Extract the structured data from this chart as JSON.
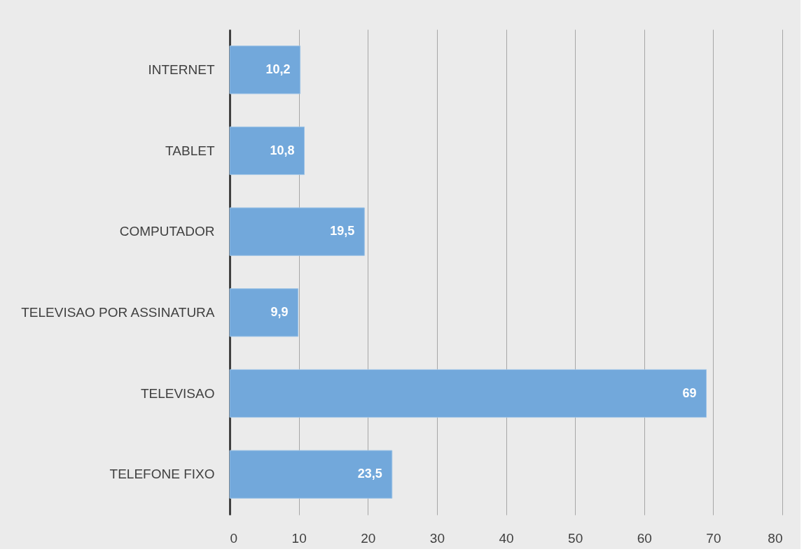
{
  "chart_data": {
    "type": "bar",
    "orientation": "horizontal",
    "categories": [
      "INTERNET",
      "TABLET",
      "COMPUTADOR",
      "TELEVISAO POR ASSINATURA",
      "TELEVISAO",
      "TELEFONE FIXO"
    ],
    "values": [
      10.2,
      10.8,
      19.5,
      9.9,
      69,
      23.5
    ],
    "value_labels": [
      "10,2",
      "10,8",
      "19,5",
      "9,9",
      "69",
      "23,5"
    ],
    "color": "#72a8db",
    "xlim": [
      0,
      80
    ],
    "xticks": [
      0,
      10,
      20,
      30,
      40,
      50,
      60,
      70,
      80
    ],
    "grid": "x"
  }
}
